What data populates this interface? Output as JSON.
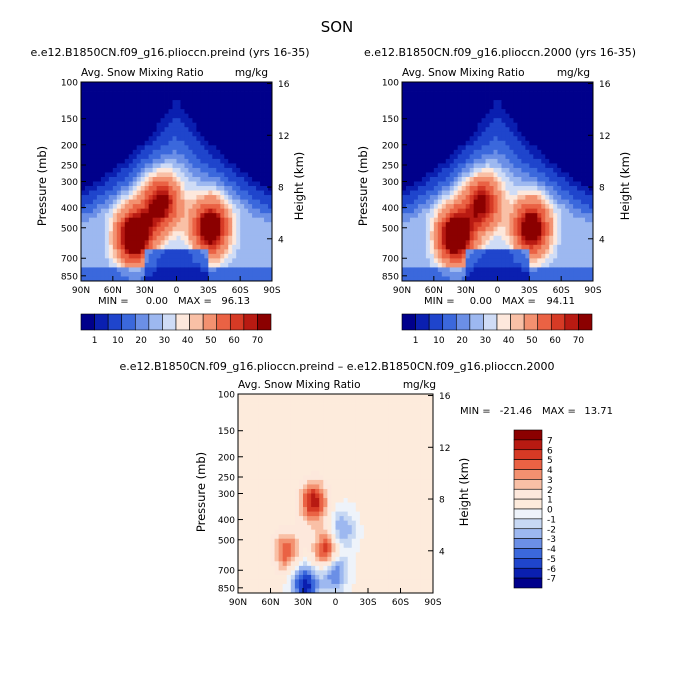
{
  "page_title": "SON",
  "chart_data": [
    {
      "type": "heatmap",
      "id": "preind",
      "title": "e.e12.B1850CN.f09_g16.plioccn.preind (yrs 16-35)",
      "subtitle_left": "Avg. Snow Mixing Ratio",
      "subtitle_right": "mg/kg",
      "xlabel": "",
      "ylabel": "Pressure (mb)",
      "ylabel_right": "Height (km)",
      "x_ticks": [
        "90N",
        "60N",
        "30N",
        "0",
        "30S",
        "60S",
        "90S"
      ],
      "x_range": [
        90,
        -90
      ],
      "y_ticks": [
        "100",
        "150",
        "200",
        "250",
        "300",
        "400",
        "500",
        "700",
        "850"
      ],
      "y_range_mb": [
        100,
        900
      ],
      "height_ticks": [
        "16",
        "12",
        "8",
        "4"
      ],
      "stats": {
        "min_label": "MIN =",
        "min": "0.00",
        "max_label": "MAX =",
        "max": "96.13"
      },
      "colorbar": {
        "orientation": "horizontal",
        "labels": [
          "1",
          "10",
          "20",
          "30",
          "40",
          "50",
          "60",
          "70"
        ],
        "colors": [
          "#00008b",
          "#0a1fb0",
          "#1f45cc",
          "#3b68dc",
          "#6b8fe6",
          "#9db8f0",
          "#cfdcf6",
          "#fde8dc",
          "#f9c0a6",
          "#f39170",
          "#ea6244",
          "#d63a25",
          "#b81a12",
          "#8b0000"
        ]
      },
      "field": {
        "lobes": [
          {
            "lat": 40,
            "p": 550,
            "value": 70
          },
          {
            "lat": 14,
            "p": 380,
            "value": 55
          },
          {
            "lat": -32,
            "p": 500,
            "value": 65
          }
        ]
      }
    },
    {
      "type": "heatmap",
      "id": "p2000",
      "title": "e.e12.B1850CN.f09_g16.plioccn.2000 (yrs 16-35)",
      "subtitle_left": "Avg. Snow Mixing Ratio",
      "subtitle_right": "mg/kg",
      "xlabel": "",
      "ylabel": "Pressure (mb)",
      "ylabel_right": "Height (km)",
      "x_ticks": [
        "90N",
        "60N",
        "30N",
        "0",
        "30S",
        "60S",
        "90S"
      ],
      "x_range": [
        90,
        -90
      ],
      "y_ticks": [
        "100",
        "150",
        "200",
        "250",
        "300",
        "400",
        "500",
        "700",
        "850"
      ],
      "y_range_mb": [
        100,
        900
      ],
      "height_ticks": [
        "16",
        "12",
        "8",
        "4"
      ],
      "stats": {
        "min_label": "MIN =",
        "min": "0.00",
        "max_label": "MAX =",
        "max": "94.11"
      },
      "colorbar": {
        "orientation": "horizontal",
        "labels": [
          "1",
          "10",
          "20",
          "30",
          "40",
          "50",
          "60",
          "70"
        ],
        "colors": [
          "#00008b",
          "#0a1fb0",
          "#1f45cc",
          "#3b68dc",
          "#6b8fe6",
          "#9db8f0",
          "#cfdcf6",
          "#fde8dc",
          "#f9c0a6",
          "#f39170",
          "#ea6244",
          "#d63a25",
          "#b81a12",
          "#8b0000"
        ]
      },
      "field": {
        "lobes": [
          {
            "lat": 40,
            "p": 550,
            "value": 68
          },
          {
            "lat": 14,
            "p": 380,
            "value": 52
          },
          {
            "lat": -32,
            "p": 500,
            "value": 63
          }
        ]
      }
    },
    {
      "type": "heatmap",
      "id": "difference",
      "title": "e.e12.B1850CN.f09_g16.plioccn.preind – e.e12.B1850CN.f09_g16.plioccn.2000",
      "subtitle_left": "Avg. Snow Mixing Ratio",
      "subtitle_right": "mg/kg",
      "xlabel": "",
      "ylabel": "Pressure (mb)",
      "ylabel_right": "Height (km)",
      "x_ticks": [
        "90N",
        "60N",
        "30N",
        "0",
        "30S",
        "60S",
        "90S"
      ],
      "x_range": [
        90,
        -90
      ],
      "y_ticks": [
        "100",
        "150",
        "200",
        "250",
        "300",
        "400",
        "500",
        "700",
        "850"
      ],
      "y_range_mb": [
        100,
        900
      ],
      "height_ticks": [
        "16",
        "12",
        "8",
        "4"
      ],
      "stats": {
        "min_label": "MIN =",
        "min": "-21.46",
        "max_label": "MAX =",
        "max": "13.71"
      },
      "colorbar": {
        "orientation": "vertical",
        "labels": [
          "7",
          "6",
          "5",
          "4",
          "3",
          "2",
          "1",
          "0",
          "-1",
          "-2",
          "-3",
          "-4",
          "-5",
          "-6",
          "-7"
        ],
        "colors": [
          "#8b0000",
          "#b81a12",
          "#d63a25",
          "#ea6244",
          "#f39170",
          "#f9c0a6",
          "#fde8dc",
          "#fdebdc",
          "#eef3fa",
          "#c7d8f3",
          "#9db8f0",
          "#6b8fe6",
          "#3b68dc",
          "#1f45cc",
          "#0a1fb0",
          "#00008b"
        ]
      },
      "field": {
        "lobes": [
          {
            "lat": 45,
            "p": 570,
            "value": 4.5
          },
          {
            "lat": 20,
            "p": 330,
            "value": 6.5
          },
          {
            "lat": 8,
            "p": 580,
            "value": 7
          },
          {
            "lat": 2,
            "p": 700,
            "value": -6
          },
          {
            "lat": 28,
            "p": 820,
            "value": -7
          },
          {
            "lat": -6,
            "p": 450,
            "value": -3.5
          }
        ]
      }
    }
  ]
}
